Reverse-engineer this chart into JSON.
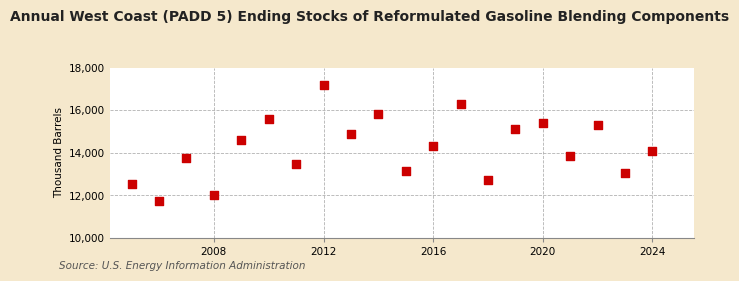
{
  "title": "Annual West Coast (PADD 5) Ending Stocks of Reformulated Gasoline Blending Components",
  "ylabel": "Thousand Barrels",
  "source": "Source: U.S. Energy Information Administration",
  "years": [
    2005,
    2006,
    2007,
    2008,
    2009,
    2010,
    2011,
    2012,
    2013,
    2014,
    2015,
    2016,
    2017,
    2018,
    2019,
    2020,
    2021,
    2022,
    2023,
    2024
  ],
  "values": [
    12550,
    11750,
    13750,
    12000,
    14600,
    15600,
    13450,
    17200,
    14900,
    15800,
    13150,
    14300,
    16300,
    12700,
    15100,
    15400,
    13850,
    15300,
    13050,
    14100
  ],
  "marker_color": "#cc0000",
  "marker_size": 28,
  "background_color": "#f5e8cc",
  "plot_bg_color": "#ffffff",
  "grid_color": "#aaaaaa",
  "ylim": [
    10000,
    18000
  ],
  "yticks": [
    10000,
    12000,
    14000,
    16000,
    18000
  ],
  "xlim": [
    2004.2,
    2025.5
  ],
  "xticks": [
    2008,
    2012,
    2016,
    2020,
    2024
  ],
  "title_fontsize": 10,
  "ylabel_fontsize": 7.5,
  "tick_fontsize": 7.5,
  "source_fontsize": 7.5
}
